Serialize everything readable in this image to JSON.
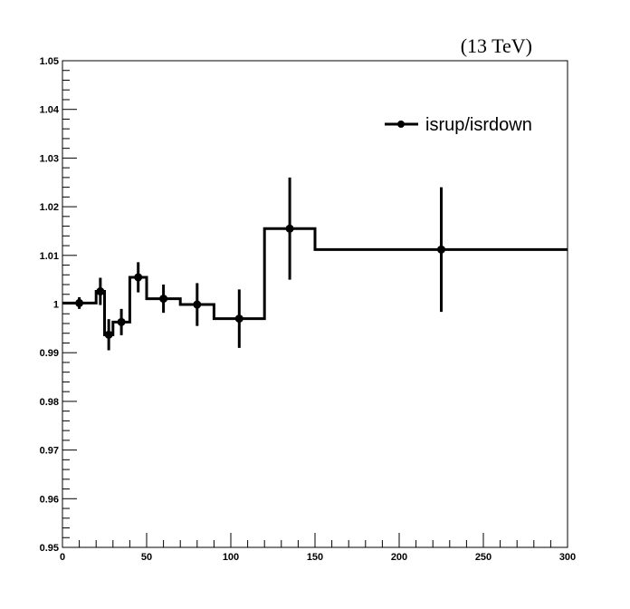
{
  "chart_data": {
    "type": "histogram",
    "annotation": "(13 TeV)",
    "xlabel": "",
    "ylabel": "",
    "xlim": [
      0,
      300
    ],
    "ylim": [
      0.95,
      1.05
    ],
    "grid": false,
    "legend_position": "top-right",
    "x_ticks": [
      "0",
      "50",
      "100",
      "150",
      "200",
      "250",
      "300"
    ],
    "y_ticks": [
      "0.95",
      "0.96",
      "0.97",
      "0.98",
      "0.99",
      "1",
      "1.01",
      "1.02",
      "1.03",
      "1.04",
      "1.05"
    ],
    "series": [
      {
        "name": "isrup/isrdown",
        "color": "#000000",
        "bins": [
          {
            "low": 0,
            "high": 20,
            "center": 10,
            "value": 1.0002,
            "error": 0.0012
          },
          {
            "low": 20,
            "high": 25,
            "center": 22.5,
            "value": 1.0026,
            "error": 0.0028
          },
          {
            "low": 25,
            "high": 30,
            "center": 27.5,
            "value": 0.9937,
            "error": 0.0032
          },
          {
            "low": 30,
            "high": 40,
            "center": 35,
            "value": 0.9963,
            "error": 0.0027
          },
          {
            "low": 40,
            "high": 50,
            "center": 45,
            "value": 1.0055,
            "error": 0.0031
          },
          {
            "low": 50,
            "high": 70,
            "center": 60,
            "value": 1.0011,
            "error": 0.0029
          },
          {
            "low": 70,
            "high": 90,
            "center": 80,
            "value": 0.9999,
            "error": 0.0044
          },
          {
            "low": 90,
            "high": 120,
            "center": 105,
            "value": 0.997,
            "error": 0.006
          },
          {
            "low": 120,
            "high": 150,
            "center": 135,
            "value": 1.0155,
            "error": 0.0105
          },
          {
            "low": 150,
            "high": 300,
            "center": 225,
            "value": 1.0112,
            "error": 0.0128
          }
        ]
      }
    ]
  }
}
